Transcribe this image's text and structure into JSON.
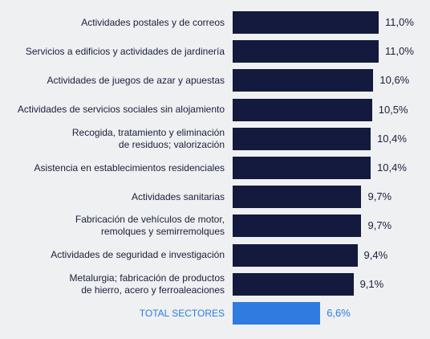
{
  "colors": {
    "bar": "#131a3d",
    "total_bar": "#2f7be0",
    "total_label": "#2f7be0",
    "text": "#1b1f3b",
    "background": "#eef0f2"
  },
  "chart_data": {
    "type": "bar",
    "orientation": "horizontal",
    "categories": [
      [
        "Actividades postales y de correos"
      ],
      [
        "Servicios a edificios y actividades de jardinería"
      ],
      [
        "Actividades de juegos de azar y apuestas"
      ],
      [
        "Actividades de servicios sociales sin alojamiento"
      ],
      [
        "Recogida, tratamiento y eliminación",
        "de residuos; valorización"
      ],
      [
        "Asistencia en establecimientos residenciales"
      ],
      [
        "Actividades sanitarias"
      ],
      [
        "Fabricación de vehículos de motor,",
        "remolques y semirremolques"
      ],
      [
        "Actividades de seguridad e investigación"
      ],
      [
        "Metalurgia; fabricación de productos",
        "de hierro, acero y ferroaleaciones"
      ],
      [
        "TOTAL SECTORES"
      ]
    ],
    "values": [
      11.0,
      11.0,
      10.6,
      10.5,
      10.4,
      10.4,
      9.7,
      9.7,
      9.4,
      9.1,
      6.6
    ],
    "value_labels": [
      "11,0%",
      "11,0%",
      "10,6%",
      "10,5%",
      "10,4%",
      "10,4%",
      "9,7%",
      "9,7%",
      "9,4%",
      "9,1%",
      "6,6%"
    ],
    "highlight_index": 10,
    "xlim": [
      0,
      11.0
    ],
    "grid": false,
    "legend": "none",
    "title": "",
    "xlabel": "",
    "ylabel": ""
  }
}
